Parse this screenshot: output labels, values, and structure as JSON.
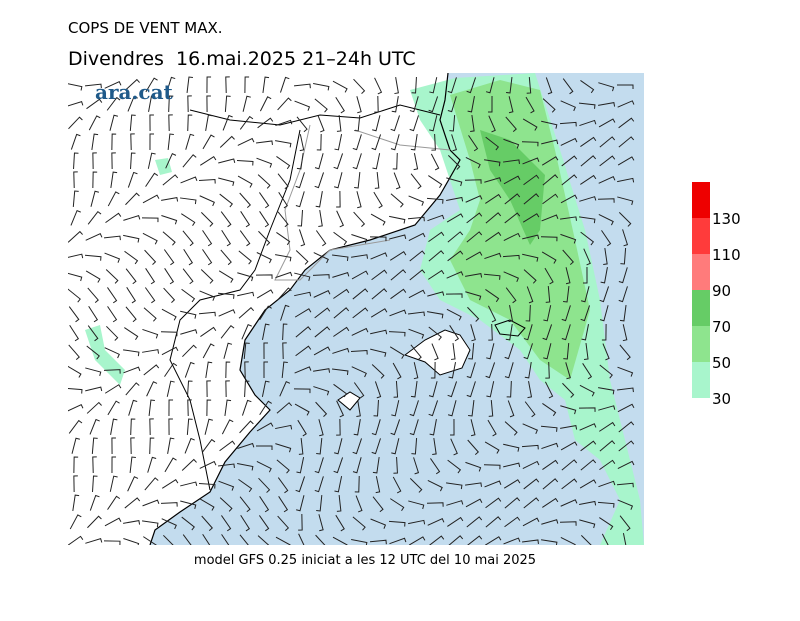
{
  "header": {
    "title": "COPS DE VENT MAX.",
    "subtitle": "Divendres  16.mai.2025 21–24h UTC"
  },
  "logo": "ara.cat",
  "footer": "model GFS 0.25 iniciat a les 12 UTC del 10 mai 2025",
  "legend": {
    "limits": [
      30,
      150
    ],
    "ticks": [
      30,
      50,
      70,
      90,
      110,
      130
    ],
    "colors": [
      "#a8f5cc",
      "#8ee48e",
      "#66cc66",
      "#ff7b7b",
      "#ff3b3b",
      "#ee0000"
    ]
  }
}
